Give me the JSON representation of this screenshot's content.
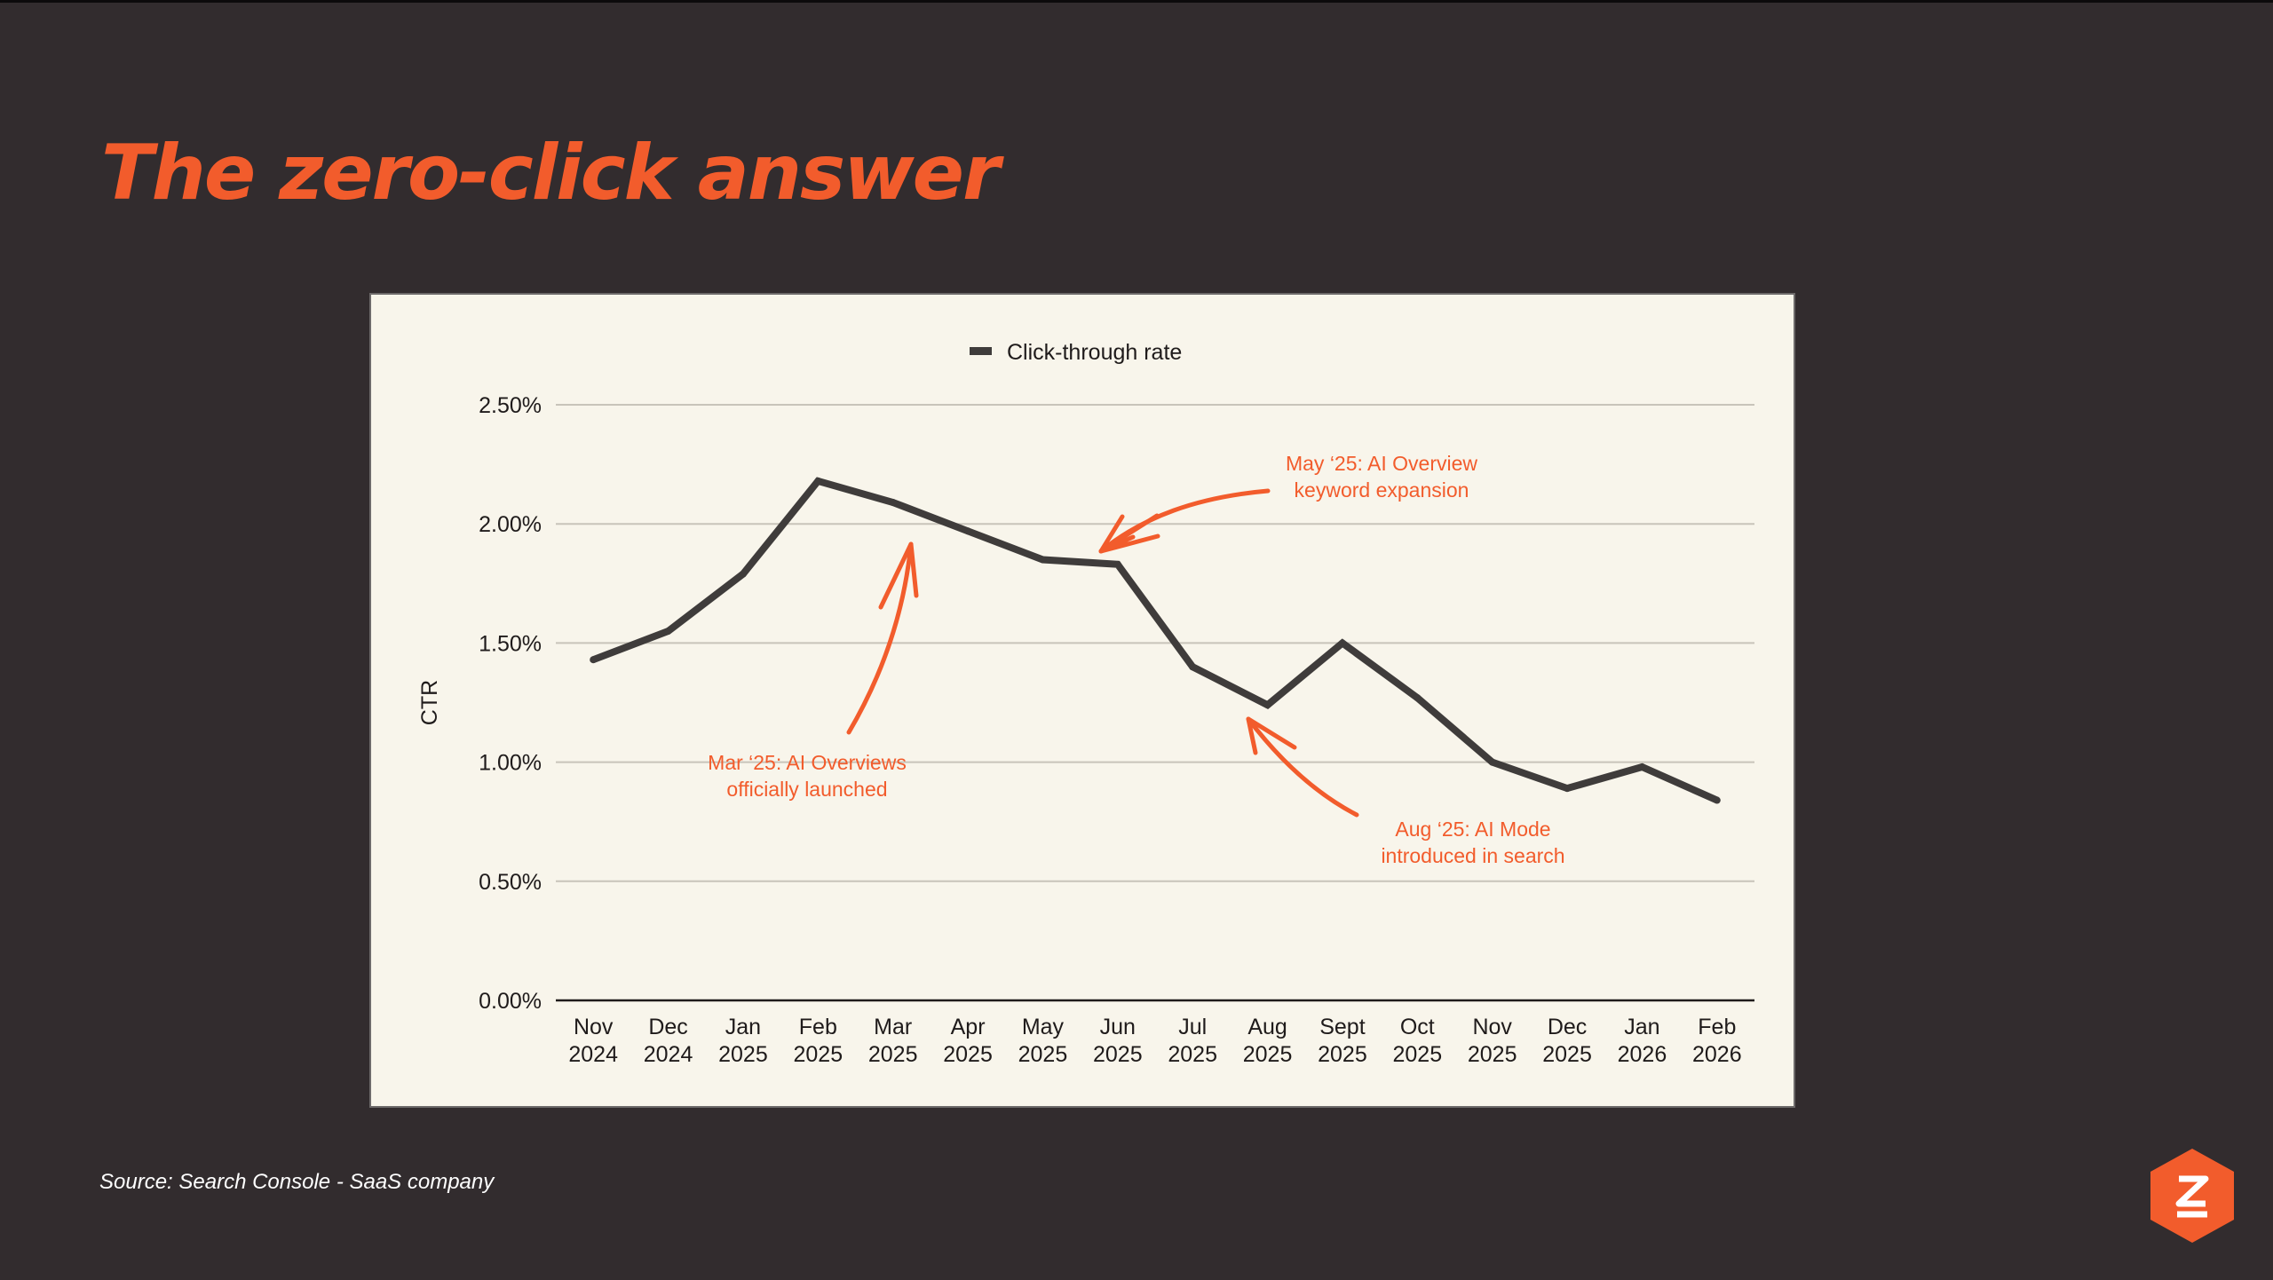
{
  "slide": {
    "title": "The zero-click answer",
    "source": "Source: Search Console - SaaS company"
  },
  "colors": {
    "background": "#322c2e",
    "accent": "#f25c2c",
    "panel": "#f8f5eb",
    "line": "#3f3c3b",
    "grid": "#c8c4ba"
  },
  "logo": {
    "icon": "brand-hexagon-icon"
  },
  "chart_data": {
    "type": "line",
    "title": "",
    "ylabel": "CTR",
    "xlabel": "",
    "ylim": [
      0,
      2.5
    ],
    "yticks": [
      "0.00%",
      "0.50%",
      "1.00%",
      "1.50%",
      "2.00%",
      "2.50%"
    ],
    "grid": true,
    "legend_position": "top-center",
    "categories": [
      [
        "Nov",
        "2024"
      ],
      [
        "Dec",
        "2024"
      ],
      [
        "Jan",
        "2025"
      ],
      [
        "Feb",
        "2025"
      ],
      [
        "Mar",
        "2025"
      ],
      [
        "Apr",
        "2025"
      ],
      [
        "May",
        "2025"
      ],
      [
        "Jun",
        "2025"
      ],
      [
        "Jul",
        "2025"
      ],
      [
        "Aug",
        "2025"
      ],
      [
        "Sept",
        "2025"
      ],
      [
        "Oct",
        "2025"
      ],
      [
        "Nov",
        "2025"
      ],
      [
        "Dec",
        "2025"
      ],
      [
        "Jan",
        "2026"
      ],
      [
        "Feb",
        "2026"
      ]
    ],
    "series": [
      {
        "name": "Click-through rate",
        "values": [
          1.43,
          1.55,
          1.79,
          2.18,
          2.09,
          1.97,
          1.85,
          1.83,
          1.4,
          1.24,
          1.5,
          1.27,
          1.0,
          0.89,
          0.98,
          0.84
        ]
      }
    ],
    "annotations": [
      {
        "lines": [
          "Mar ‘25: AI Overviews",
          "officially launched"
        ],
        "points_to": "Mar 2025"
      },
      {
        "lines": [
          "May ‘25: AI Overview",
          "keyword expansion"
        ],
        "points_to": "Jun 2025"
      },
      {
        "lines": [
          "Aug ‘25: AI Mode",
          "introduced in search"
        ],
        "points_to": "Aug 2025"
      }
    ]
  }
}
